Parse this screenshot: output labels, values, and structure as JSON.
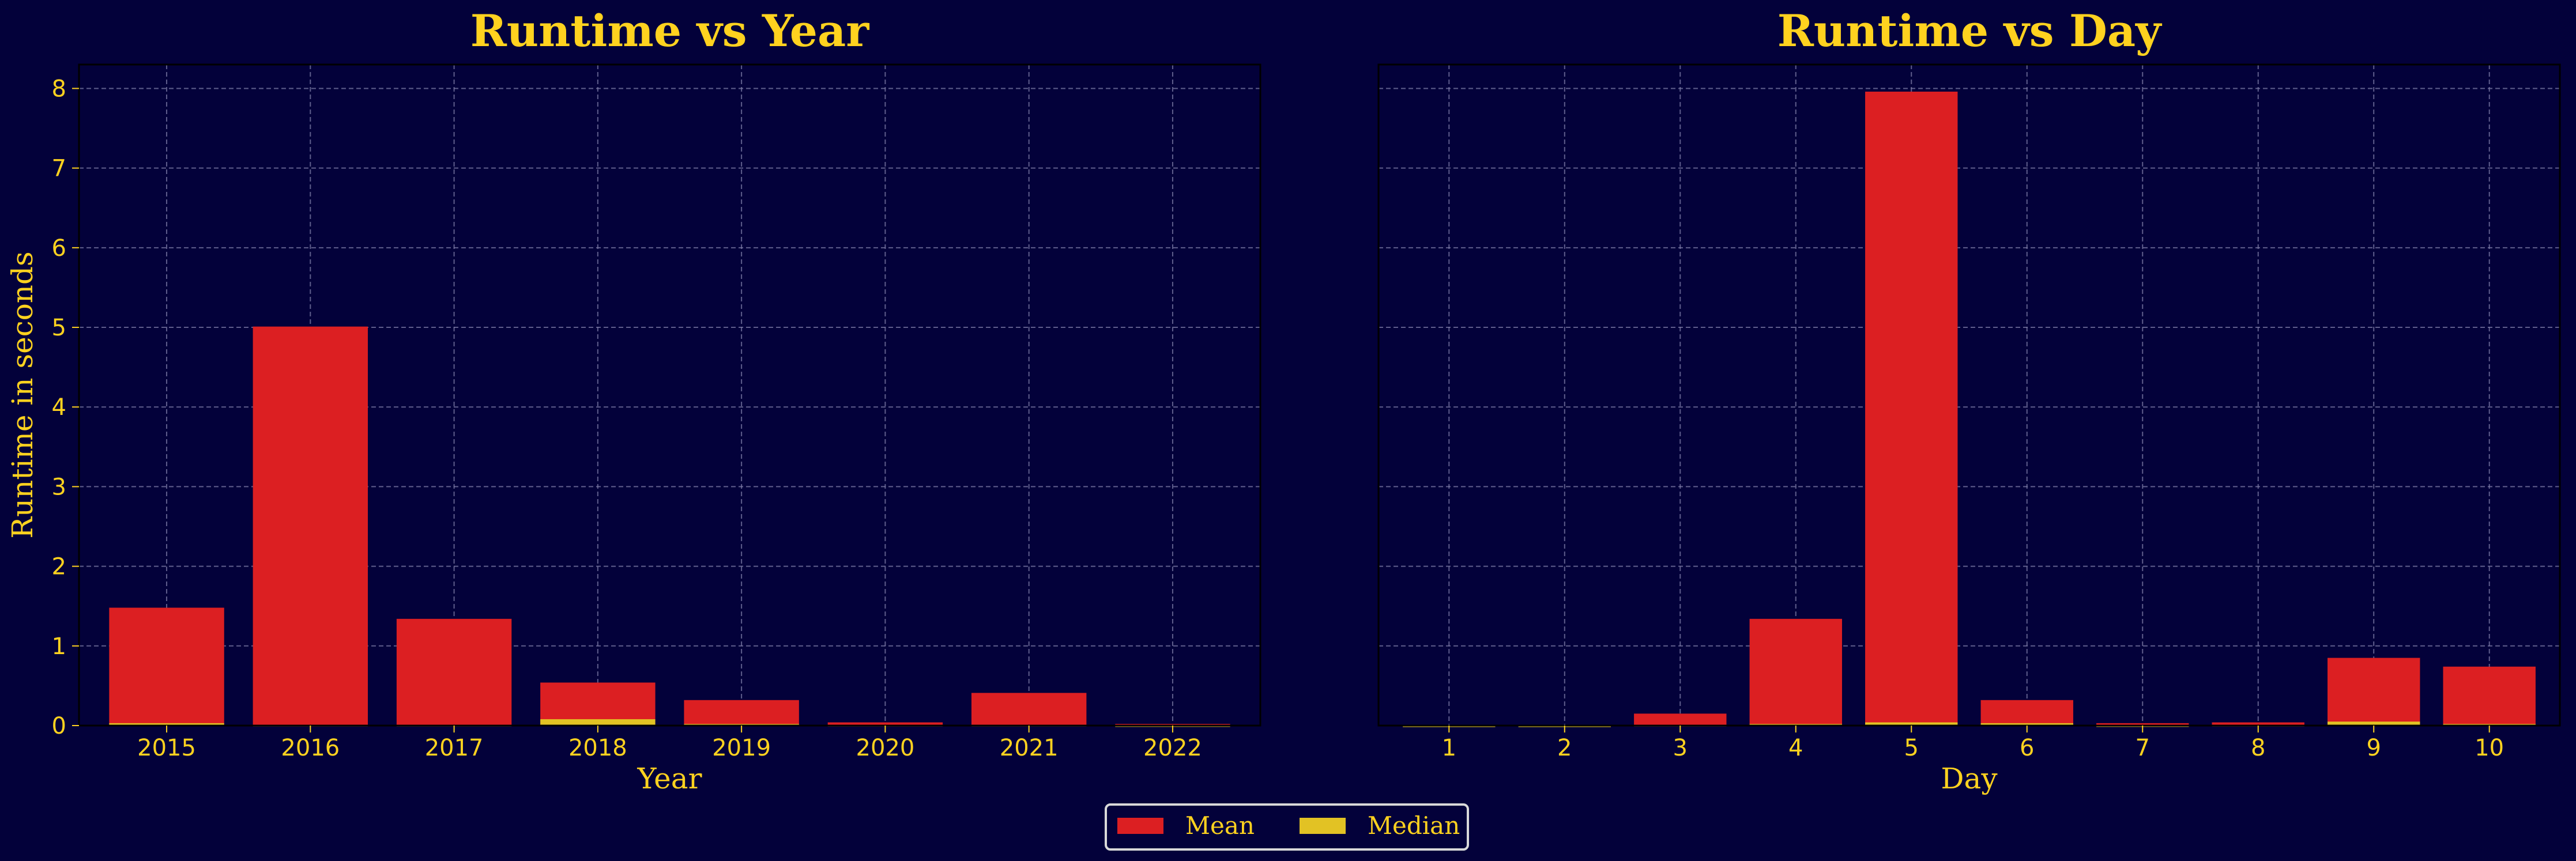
{
  "colors": {
    "background": "#03013a",
    "mean": "#dc1f22",
    "median": "#e2c224",
    "text": "#ffd21f",
    "grid": "#7f7ea8",
    "legend_edge": "#d9d9d9"
  },
  "legend": {
    "position": "bottom-center",
    "entries": [
      {
        "label": "Mean",
        "color": "#dc1f22"
      },
      {
        "label": "Median",
        "color": "#e2c224"
      }
    ]
  },
  "chart_data": [
    {
      "type": "bar",
      "title": "Runtime vs Year",
      "xlabel": "Year",
      "ylabel": "Runtime in seconds",
      "categories": [
        "2015",
        "2016",
        "2017",
        "2018",
        "2019",
        "2020",
        "2021",
        "2022"
      ],
      "ylim": [
        0,
        8.3
      ],
      "yticks": [
        "0",
        "1",
        "2",
        "3",
        "4",
        "5",
        "6",
        "7",
        "8"
      ],
      "grid": true,
      "series": [
        {
          "name": "Mean",
          "values": [
            1.48,
            5.01,
            1.34,
            0.54,
            0.32,
            0.04,
            0.41,
            0.02
          ]
        },
        {
          "name": "Median",
          "values": [
            0.03,
            0.01,
            0.01,
            0.08,
            0.02,
            0.01,
            0.01,
            0.005
          ]
        }
      ]
    },
    {
      "type": "bar",
      "title": "Runtime vs Day",
      "xlabel": "Day",
      "ylabel": "",
      "categories": [
        "1",
        "2",
        "3",
        "4",
        "5",
        "6",
        "7",
        "8",
        "9",
        "10"
      ],
      "ylim": [
        0,
        8.3
      ],
      "yticks": [],
      "grid": true,
      "series": [
        {
          "name": "Mean",
          "values": [
            0.01,
            0.01,
            0.15,
            1.34,
            7.96,
            0.32,
            0.03,
            0.04,
            0.85,
            0.74
          ]
        },
        {
          "name": "Median",
          "values": [
            0.003,
            0.003,
            0.01,
            0.02,
            0.04,
            0.03,
            0.005,
            0.01,
            0.05,
            0.02
          ]
        }
      ]
    }
  ]
}
